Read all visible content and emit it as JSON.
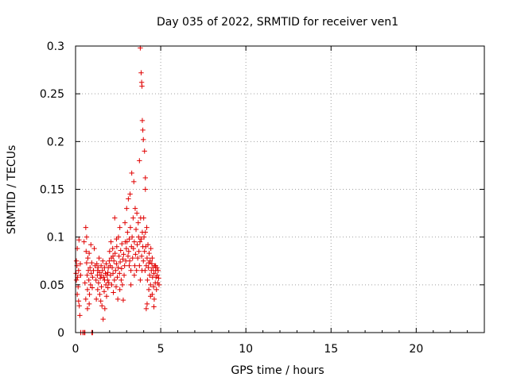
{
  "chart_data": {
    "type": "scatter",
    "title": "Day 035 of 2022, SRMTID for receiver ven1",
    "xlabel": "GPS time / hours",
    "ylabel": "SRMTID / TECUs",
    "xlim": [
      0,
      24
    ],
    "ylim": [
      0,
      0.3
    ],
    "x_ticks": [
      0,
      5,
      10,
      15,
      20
    ],
    "x_tick_labels": [
      "0",
      "5",
      "10",
      "15",
      "20"
    ],
    "y_ticks": [
      0,
      0.05,
      0.1,
      0.15,
      0.2,
      0.25,
      0.3
    ],
    "y_tick_labels": [
      "0",
      "0.05",
      "0.1",
      "0.15",
      "0.2",
      "0.25",
      "0.3"
    ],
    "grid": true,
    "marker": "+",
    "color": "#e00000",
    "series": [
      {
        "name": "SRMTID",
        "points": [
          [
            0.03,
            0.062
          ],
          [
            0.05,
            0.055
          ],
          [
            0.08,
            0.07
          ],
          [
            0.1,
            0.088
          ],
          [
            0.12,
            0.058
          ],
          [
            0.15,
            0.048
          ],
          [
            0.18,
            0.065
          ],
          [
            0.2,
            0.097
          ],
          [
            0.22,
            0.028
          ],
          [
            0.25,
            0.018
          ],
          [
            0.28,
            0.072
          ],
          [
            0.3,
            0.06
          ],
          [
            0.1,
            0.04
          ],
          [
            0.18,
            0.033
          ],
          [
            0.05,
            0.075
          ],
          [
            0.3,
            0.0
          ],
          [
            0.42,
            0.0
          ],
          [
            0.5,
            0.0
          ],
          [
            0.55,
            0.0
          ],
          [
            0.95,
            0.0
          ],
          [
            1.0,
            0.0
          ],
          [
            0.5,
            0.095
          ],
          [
            0.55,
            0.052
          ],
          [
            0.6,
            0.11
          ],
          [
            0.62,
            0.085
          ],
          [
            0.65,
            0.073
          ],
          [
            0.68,
            0.06
          ],
          [
            0.7,
            0.045
          ],
          [
            0.72,
            0.078
          ],
          [
            0.75,
            0.065
          ],
          [
            0.78,
            0.055
          ],
          [
            0.8,
            0.083
          ],
          [
            0.82,
            0.04
          ],
          [
            0.85,
            0.068
          ],
          [
            0.88,
            0.05
          ],
          [
            0.9,
            0.092
          ],
          [
            0.92,
            0.062
          ],
          [
            0.95,
            0.073
          ],
          [
            0.98,
            0.047
          ],
          [
            1.0,
            0.058
          ],
          [
            0.6,
            0.035
          ],
          [
            0.7,
            0.025
          ],
          [
            0.8,
            0.03
          ],
          [
            0.65,
            0.1
          ],
          [
            1.05,
            0.065
          ],
          [
            1.1,
            0.088
          ],
          [
            1.15,
            0.07
          ],
          [
            1.2,
            0.055
          ],
          [
            1.22,
            0.035
          ],
          [
            1.25,
            0.072
          ],
          [
            1.28,
            0.06
          ],
          [
            1.3,
            0.045
          ],
          [
            1.32,
            0.068
          ],
          [
            1.35,
            0.052
          ],
          [
            1.38,
            0.078
          ],
          [
            1.4,
            0.063
          ],
          [
            1.42,
            0.04
          ],
          [
            1.45,
            0.057
          ],
          [
            1.48,
            0.033
          ],
          [
            1.5,
            0.07
          ],
          [
            1.52,
            0.048
          ],
          [
            1.55,
            0.028
          ],
          [
            1.58,
            0.065
          ],
          [
            1.6,
            0.075
          ],
          [
            1.62,
            0.014
          ],
          [
            1.65,
            0.058
          ],
          [
            1.68,
            0.043
          ],
          [
            1.7,
            0.068
          ],
          [
            1.72,
            0.025
          ],
          [
            1.75,
            0.062
          ],
          [
            1.78,
            0.05
          ],
          [
            1.8,
            0.072
          ],
          [
            1.82,
            0.038
          ],
          [
            1.85,
            0.06
          ],
          [
            1.88,
            0.055
          ],
          [
            1.9,
            0.047
          ],
          [
            1.92,
            0.068
          ],
          [
            1.95,
            0.052
          ],
          [
            1.98,
            0.075
          ],
          [
            1.3,
            0.065
          ],
          [
            1.5,
            0.06
          ],
          [
            1.7,
            0.055
          ],
          [
            1.9,
            0.063
          ],
          [
            2.0,
            0.085
          ],
          [
            2.03,
            0.07
          ],
          [
            2.05,
            0.06
          ],
          [
            2.08,
            0.095
          ],
          [
            2.1,
            0.078
          ],
          [
            2.12,
            0.05
          ],
          [
            2.15,
            0.068
          ],
          [
            2.18,
            0.088
          ],
          [
            2.2,
            0.062
          ],
          [
            2.22,
            0.042
          ],
          [
            2.25,
            0.075
          ],
          [
            2.28,
            0.055
          ],
          [
            2.3,
            0.12
          ],
          [
            2.32,
            0.083
          ],
          [
            2.35,
            0.065
          ],
          [
            2.38,
            0.048
          ],
          [
            2.4,
            0.072
          ],
          [
            2.42,
            0.09
          ],
          [
            2.45,
            0.058
          ],
          [
            2.48,
            0.035
          ],
          [
            2.5,
            0.068
          ],
          [
            2.52,
            0.1
          ],
          [
            2.55,
            0.08
          ],
          [
            2.58,
            0.062
          ],
          [
            2.6,
            0.045
          ],
          [
            2.62,
            0.074
          ],
          [
            2.65,
            0.086
          ],
          [
            2.68,
            0.055
          ],
          [
            2.7,
            0.067
          ],
          [
            2.72,
            0.093
          ],
          [
            2.75,
            0.05
          ],
          [
            2.78,
            0.077
          ],
          [
            2.8,
            0.034
          ],
          [
            2.82,
            0.082
          ],
          [
            2.85,
            0.06
          ],
          [
            2.88,
            0.07
          ],
          [
            2.9,
            0.115
          ],
          [
            2.92,
            0.095
          ],
          [
            2.95,
            0.075
          ],
          [
            2.98,
            0.088
          ],
          [
            2.6,
            0.11
          ],
          [
            2.4,
            0.098
          ],
          [
            2.2,
            0.08
          ],
          [
            3.0,
            0.13
          ],
          [
            3.02,
            0.095
          ],
          [
            3.05,
            0.105
          ],
          [
            3.08,
            0.08
          ],
          [
            3.1,
            0.14
          ],
          [
            3.12,
            0.085
          ],
          [
            3.15,
            0.098
          ],
          [
            3.18,
            0.075
          ],
          [
            3.2,
            0.145
          ],
          [
            3.22,
            0.11
          ],
          [
            3.25,
            0.065
          ],
          [
            3.28,
            0.09
          ],
          [
            3.3,
            0.167
          ],
          [
            3.32,
            0.1
          ],
          [
            3.35,
            0.078
          ],
          [
            3.38,
            0.12
          ],
          [
            3.4,
            0.088
          ],
          [
            3.42,
            0.158
          ],
          [
            3.45,
            0.095
          ],
          [
            3.48,
            0.07
          ],
          [
            3.5,
            0.13
          ],
          [
            3.52,
            0.082
          ],
          [
            3.55,
            0.108
          ],
          [
            3.58,
            0.065
          ],
          [
            3.6,
            0.125
          ],
          [
            3.62,
            0.092
          ],
          [
            3.65,
            0.078
          ],
          [
            3.68,
            0.115
          ],
          [
            3.7,
            0.1
          ],
          [
            3.72,
            0.085
          ],
          [
            3.75,
            0.07
          ],
          [
            3.78,
            0.095
          ],
          [
            3.8,
            0.055
          ],
          [
            3.82,
            0.12
          ],
          [
            3.85,
            0.098
          ],
          [
            3.88,
            0.08
          ],
          [
            3.9,
            0.065
          ],
          [
            3.92,
            0.105
          ],
          [
            3.95,
            0.09
          ],
          [
            3.98,
            0.075
          ],
          [
            3.25,
            0.05
          ],
          [
            3.45,
            0.06
          ],
          [
            3.15,
            0.07
          ],
          [
            3.8,
            0.298
          ],
          [
            3.85,
            0.272
          ],
          [
            3.88,
            0.262
          ],
          [
            3.9,
            0.258
          ],
          [
            3.92,
            0.222
          ],
          [
            3.95,
            0.212
          ],
          [
            3.98,
            0.202
          ],
          [
            4.05,
            0.19
          ],
          [
            3.75,
            0.18
          ],
          [
            4.1,
            0.162
          ],
          [
            4.0,
            0.12
          ],
          [
            4.02,
            0.1
          ],
          [
            4.05,
            0.085
          ],
          [
            4.08,
            0.065
          ],
          [
            4.1,
            0.15
          ],
          [
            4.12,
            0.09
          ],
          [
            4.15,
            0.07
          ],
          [
            4.18,
            0.11
          ],
          [
            4.2,
            0.078
          ],
          [
            4.22,
            0.055
          ],
          [
            4.25,
            0.092
          ],
          [
            4.28,
            0.068
          ],
          [
            4.3,
            0.045
          ],
          [
            4.32,
            0.083
          ],
          [
            4.35,
            0.06
          ],
          [
            4.38,
            0.075
          ],
          [
            4.4,
            0.05
          ],
          [
            4.42,
            0.088
          ],
          [
            4.45,
            0.065
          ],
          [
            4.48,
            0.072
          ],
          [
            4.5,
            0.04
          ],
          [
            4.52,
            0.058
          ],
          [
            4.55,
            0.068
          ],
          [
            4.58,
            0.048
          ],
          [
            4.6,
            0.062
          ],
          [
            4.62,
            0.035
          ],
          [
            4.65,
            0.07
          ],
          [
            4.68,
            0.052
          ],
          [
            4.7,
            0.065
          ],
          [
            4.72,
            0.058
          ],
          [
            4.75,
            0.045
          ],
          [
            4.78,
            0.068
          ],
          [
            4.8,
            0.06
          ],
          [
            4.82,
            0.052
          ],
          [
            4.85,
            0.065
          ],
          [
            4.88,
            0.057
          ],
          [
            4.9,
            0.05
          ],
          [
            4.2,
            0.03
          ],
          [
            4.15,
            0.025
          ],
          [
            4.4,
            0.038
          ],
          [
            4.6,
            0.027
          ],
          [
            4.1,
            0.105
          ],
          [
            4.3,
            0.073
          ],
          [
            4.5,
            0.078
          ],
          [
            4.7,
            0.07
          ]
        ]
      }
    ]
  }
}
